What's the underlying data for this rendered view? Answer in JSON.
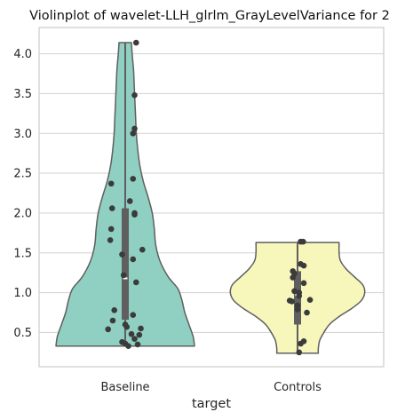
{
  "chart_data": {
    "type": "violin",
    "title": "Violinplot of wavelet-LLH_glrlm_GrayLevelVariance for 2",
    "xlabel": "target",
    "ylabel": "",
    "ylim": [
      0.07,
      4.33
    ],
    "yticks": [
      "0.5",
      "1.0",
      "1.5",
      "2.0",
      "2.5",
      "3.0",
      "3.5",
      "4.0"
    ],
    "grid": true,
    "categories": [
      "Baseline",
      "Controls"
    ],
    "series": [
      {
        "name": "Baseline",
        "color": "#8fd0c2",
        "min": 0.33,
        "max": 4.14,
        "q1": 0.66,
        "median": 1.18,
        "q3": 2.06,
        "whisker_low": 0.33,
        "whisker_high": 4.14,
        "density": [
          [
            0.33,
            1.0
          ],
          [
            0.45,
            0.98
          ],
          [
            0.6,
            0.92
          ],
          [
            0.75,
            0.86
          ],
          [
            0.9,
            0.82
          ],
          [
            1.05,
            0.76
          ],
          [
            1.2,
            0.62
          ],
          [
            1.4,
            0.5
          ],
          [
            1.6,
            0.44
          ],
          [
            1.8,
            0.42
          ],
          [
            2.0,
            0.39
          ],
          [
            2.2,
            0.33
          ],
          [
            2.4,
            0.26
          ],
          [
            2.6,
            0.21
          ],
          [
            2.8,
            0.18
          ],
          [
            3.0,
            0.16
          ],
          [
            3.2,
            0.15
          ],
          [
            3.4,
            0.14
          ],
          [
            3.6,
            0.13
          ],
          [
            3.8,
            0.12
          ],
          [
            4.0,
            0.1
          ],
          [
            4.14,
            0.09
          ]
        ],
        "points": [
          [
            0.35,
            4.14
          ],
          [
            0.3,
            3.48
          ],
          [
            0.25,
            3.0
          ],
          [
            0.3,
            3.06
          ],
          [
            0.25,
            2.43
          ],
          [
            -0.45,
            2.37
          ],
          [
            0.15,
            2.15
          ],
          [
            -0.42,
            2.06
          ],
          [
            0.3,
            2.0
          ],
          [
            0.3,
            1.98
          ],
          [
            -0.45,
            1.8
          ],
          [
            -0.48,
            1.66
          ],
          [
            0.55,
            1.54
          ],
          [
            -0.1,
            1.48
          ],
          [
            0.25,
            1.42
          ],
          [
            -0.05,
            1.22
          ],
          [
            0.35,
            1.13
          ],
          [
            -0.35,
            0.78
          ],
          [
            0.25,
            0.72
          ],
          [
            -0.4,
            0.65
          ],
          [
            0.0,
            0.6
          ],
          [
            0.05,
            0.57
          ],
          [
            -0.55,
            0.54
          ],
          [
            0.5,
            0.55
          ],
          [
            0.45,
            0.47
          ],
          [
            0.2,
            0.48
          ],
          [
            0.3,
            0.42
          ],
          [
            -0.1,
            0.38
          ],
          [
            0.0,
            0.36
          ],
          [
            0.4,
            0.35
          ],
          [
            0.1,
            0.33
          ]
        ]
      },
      {
        "name": "Controls",
        "color": "#f7f6bb",
        "min": 0.24,
        "max": 1.63,
        "q1": 0.6,
        "median": 0.97,
        "q3": 1.27,
        "whisker_low": 0.24,
        "whisker_high": 1.63,
        "density": [
          [
            0.24,
            0.3
          ],
          [
            0.3,
            0.3
          ],
          [
            0.4,
            0.32
          ],
          [
            0.5,
            0.38
          ],
          [
            0.6,
            0.46
          ],
          [
            0.7,
            0.6
          ],
          [
            0.8,
            0.78
          ],
          [
            0.9,
            0.92
          ],
          [
            1.0,
            0.97
          ],
          [
            1.1,
            0.94
          ],
          [
            1.2,
            0.82
          ],
          [
            1.3,
            0.7
          ],
          [
            1.4,
            0.62
          ],
          [
            1.5,
            0.6
          ],
          [
            1.63,
            0.6
          ]
        ],
        "points": [
          [
            0.1,
            1.64
          ],
          [
            0.18,
            1.64
          ],
          [
            0.1,
            1.36
          ],
          [
            0.2,
            1.34
          ],
          [
            -0.15,
            1.27
          ],
          [
            -0.1,
            1.24
          ],
          [
            -0.15,
            1.19
          ],
          [
            0.2,
            1.12
          ],
          [
            -0.1,
            1.02
          ],
          [
            0.05,
            1.0
          ],
          [
            -0.25,
            0.9
          ],
          [
            -0.18,
            0.89
          ],
          [
            0.05,
            0.96
          ],
          [
            0.4,
            0.91
          ],
          [
            0.0,
            0.84
          ],
          [
            0.0,
            0.79
          ],
          [
            0.3,
            0.75
          ],
          [
            0.2,
            0.39
          ],
          [
            0.1,
            0.36
          ],
          [
            0.05,
            0.25
          ]
        ]
      }
    ]
  }
}
